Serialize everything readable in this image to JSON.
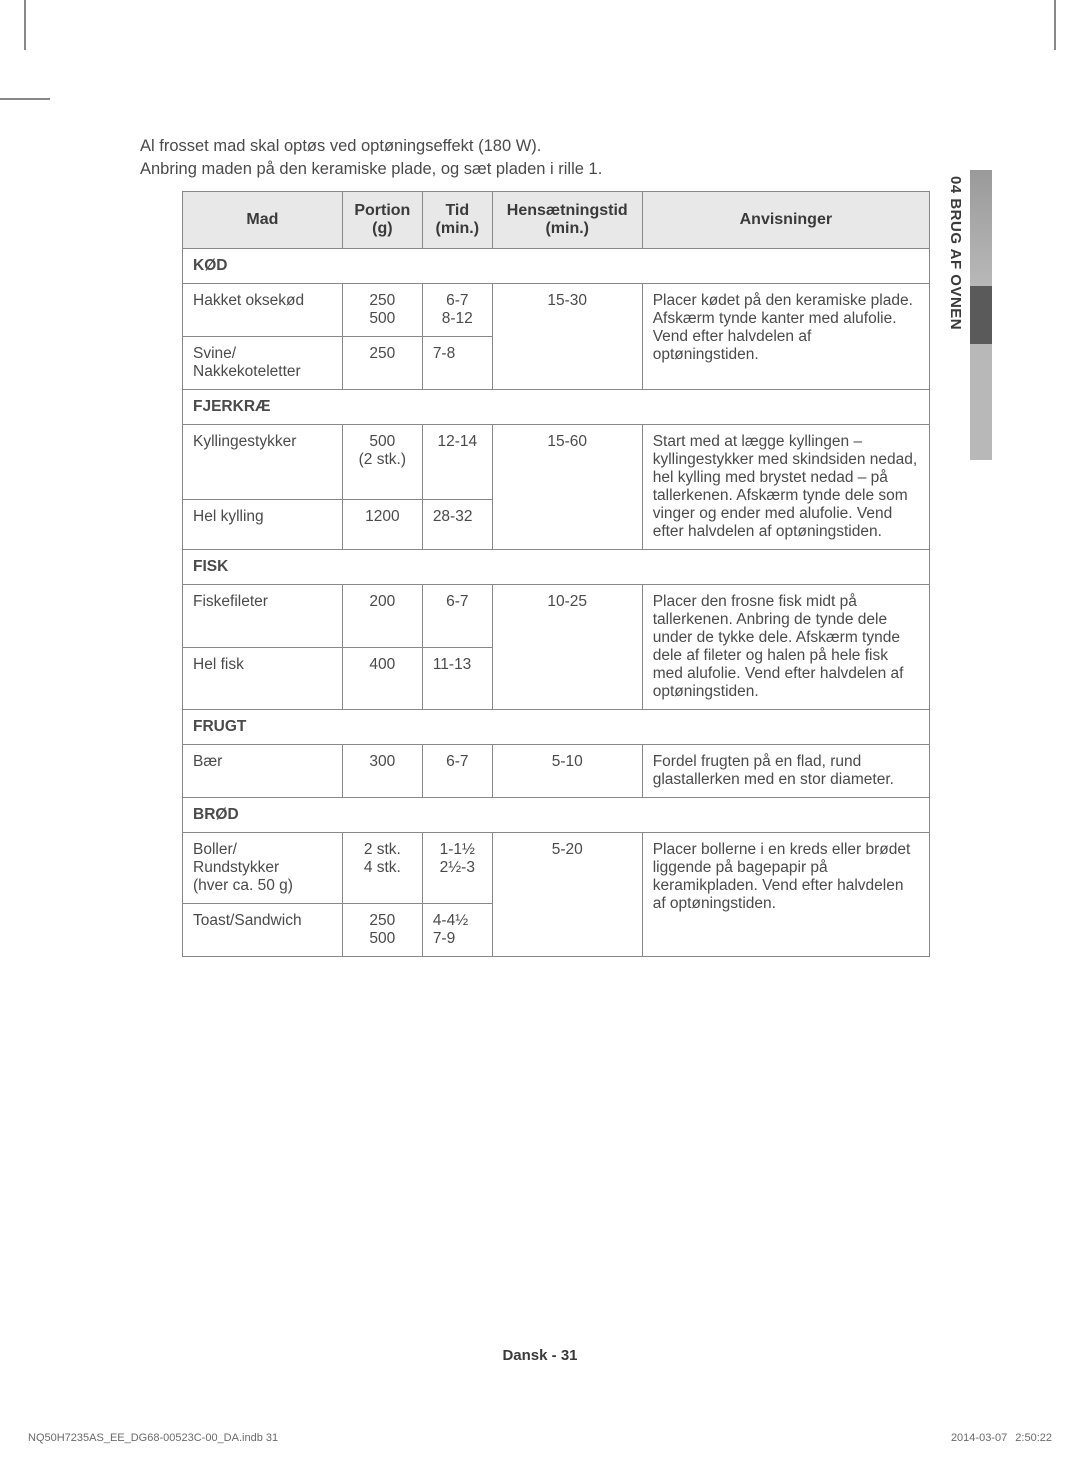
{
  "intro": {
    "line1": "Al frosset mad skal optøs ved optøningseffekt (180 W).",
    "line2": "Anbring maden på den keramiske plade, og sæt pladen i rille 1."
  },
  "headers": {
    "mad": "Mad",
    "portion": "Portion (g)",
    "tid": "Tid (min.)",
    "hens": "Hensætningstid (min.)",
    "anv": "Anvisninger"
  },
  "sections": {
    "kod": "KØD",
    "fjerkrae": "FJERKRÆ",
    "fisk": "FISK",
    "frugt": "FRUGT",
    "brod": "BRØD"
  },
  "rows": {
    "hakket": {
      "mad": "Hakket oksekød",
      "portion": "250\n500",
      "tid": "6-7\n8-12",
      "hens": "15-30"
    },
    "svine": {
      "mad": "Svine/\nNakkekoteletter",
      "portion": "250",
      "tid": "7-8"
    },
    "kod_anv": "Placer kødet på den keramiske plade. Afskærm tynde kanter med alufolie. Vend efter halvdelen af optøningstiden.",
    "kylling": {
      "mad": "Kyllingestykker",
      "portion": "500\n(2 stk.)",
      "tid": "12-14",
      "hens": "15-60"
    },
    "helkylling": {
      "mad": "Hel kylling",
      "portion": "1200",
      "tid": "28-32"
    },
    "fjerkrae_anv": "Start med at lægge kyllingen – kyllingestykker med skindsiden nedad, hel kylling med brystet nedad – på tallerkenen. Afskærm tynde dele som vinger og ender med alufolie. Vend efter halvdelen af optøningstiden.",
    "fiskefileter": {
      "mad": "Fiskefileter",
      "portion": "200",
      "tid": "6-7",
      "hens": "10-25"
    },
    "helfisk": {
      "mad": "Hel fisk",
      "portion": "400",
      "tid": "11-13"
    },
    "fisk_anv": "Placer den frosne fisk midt på tallerkenen. Anbring de tynde dele under de tykke dele. Afskærm tynde dele af fileter og halen på hele fisk med alufolie. Vend efter halvdelen af optøningstiden.",
    "baer": {
      "mad": "Bær",
      "portion": "300",
      "tid": "6-7",
      "hens": "5-10",
      "anv": "Fordel frugten på en flad, rund glastallerken med en stor diameter."
    },
    "boller": {
      "mad": "Boller/\nRundstykker\n(hver ca. 50 g)",
      "portion": "2 stk.\n4 stk.",
      "tid": "1-1½\n2½-3",
      "hens": "5-20"
    },
    "toast": {
      "mad": "Toast/Sandwich",
      "portion": "250\n500",
      "tid": "4-4½\n7-9"
    },
    "brod_anv": "Placer bollerne i en kreds eller brødet liggende på bagepapir på keramikpladen. Vend efter halvdelen af optøningstiden."
  },
  "side_tab": "04  BRUG AF OVNEN",
  "footer": {
    "center": "Dansk - 31",
    "left": "NQ50H7235AS_EE_DG68-00523C-00_DA.indb   31",
    "right_date": "2014-03-07",
    "right_time": "2:50:22"
  }
}
